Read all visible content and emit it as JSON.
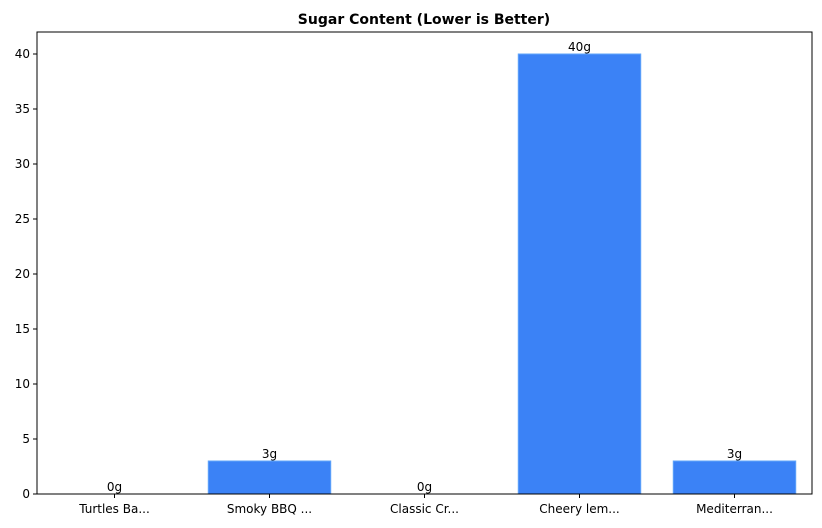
{
  "chart_data": {
    "type": "bar",
    "title": "Sugar Content (Lower is Better)",
    "xlabel": "",
    "ylabel": "",
    "categories": [
      "Turtles Ba...",
      "Smoky BBQ ...",
      "Classic Cr...",
      "Cheery lem...",
      "Mediterran..."
    ],
    "values": [
      0,
      3,
      0,
      40,
      3
    ],
    "value_labels": [
      "0g",
      "3g",
      "0g",
      "40g",
      "3g"
    ],
    "ylim": [
      0,
      42
    ],
    "yticks": [
      0,
      5,
      10,
      15,
      20,
      25,
      30,
      35,
      40
    ],
    "grid": false,
    "legend": null,
    "bar_color": "#3b82f6",
    "bar_edge_color": "#60a5fa"
  }
}
